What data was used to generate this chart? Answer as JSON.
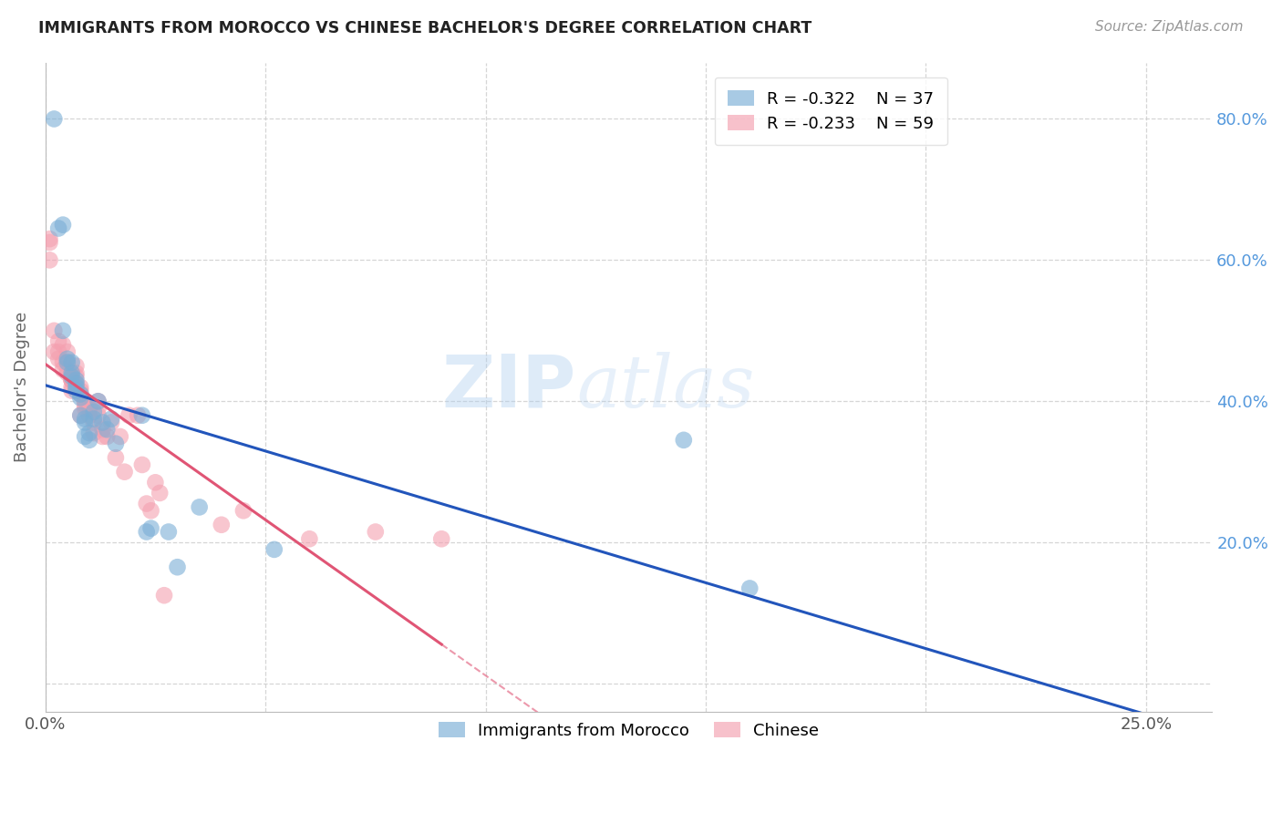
{
  "title": "IMMIGRANTS FROM MOROCCO VS CHINESE BACHELOR'S DEGREE CORRELATION CHART",
  "source": "Source: ZipAtlas.com",
  "ylabel": "Bachelor's Degree",
  "xlim": [
    0.0,
    0.265
  ],
  "ylim": [
    -0.04,
    0.88
  ],
  "legend_morocco_r": "R = -0.322",
  "legend_morocco_n": "N = 37",
  "legend_chinese_r": "R = -0.233",
  "legend_chinese_n": "N = 59",
  "color_morocco": "#7aaed6",
  "color_chinese": "#f4a0b0",
  "color_trendline_morocco": "#2255bb",
  "color_trendline_chinese": "#e05575",
  "watermark_zip": "ZIP",
  "watermark_atlas": "atlas",
  "morocco_x": [
    0.002,
    0.003,
    0.004,
    0.005,
    0.005,
    0.006,
    0.006,
    0.006,
    0.007,
    0.007,
    0.007,
    0.007,
    0.008,
    0.008,
    0.008,
    0.009,
    0.009,
    0.01,
    0.01,
    0.011,
    0.011,
    0.012,
    0.013,
    0.014,
    0.015,
    0.016,
    0.022,
    0.023,
    0.024,
    0.028,
    0.03,
    0.035,
    0.052,
    0.145,
    0.16,
    0.004,
    0.009
  ],
  "morocco_y": [
    0.8,
    0.645,
    0.5,
    0.46,
    0.455,
    0.455,
    0.44,
    0.435,
    0.43,
    0.425,
    0.42,
    0.415,
    0.41,
    0.405,
    0.38,
    0.375,
    0.37,
    0.355,
    0.345,
    0.385,
    0.375,
    0.4,
    0.37,
    0.36,
    0.375,
    0.34,
    0.38,
    0.215,
    0.22,
    0.215,
    0.165,
    0.25,
    0.19,
    0.345,
    0.135,
    0.65,
    0.35
  ],
  "chinese_x": [
    0.001,
    0.001,
    0.002,
    0.002,
    0.003,
    0.003,
    0.003,
    0.004,
    0.004,
    0.004,
    0.005,
    0.005,
    0.005,
    0.005,
    0.006,
    0.006,
    0.006,
    0.006,
    0.006,
    0.007,
    0.007,
    0.007,
    0.007,
    0.007,
    0.008,
    0.008,
    0.008,
    0.008,
    0.009,
    0.009,
    0.009,
    0.01,
    0.01,
    0.011,
    0.011,
    0.012,
    0.012,
    0.012,
    0.013,
    0.013,
    0.014,
    0.015,
    0.016,
    0.017,
    0.018,
    0.019,
    0.021,
    0.022,
    0.023,
    0.024,
    0.025,
    0.026,
    0.027,
    0.04,
    0.045,
    0.06,
    0.075,
    0.09,
    0.001
  ],
  "chinese_y": [
    0.63,
    0.6,
    0.5,
    0.47,
    0.485,
    0.47,
    0.46,
    0.48,
    0.455,
    0.445,
    0.47,
    0.455,
    0.445,
    0.44,
    0.43,
    0.43,
    0.43,
    0.42,
    0.415,
    0.45,
    0.44,
    0.435,
    0.425,
    0.42,
    0.42,
    0.415,
    0.41,
    0.38,
    0.4,
    0.395,
    0.39,
    0.39,
    0.38,
    0.37,
    0.355,
    0.4,
    0.39,
    0.38,
    0.36,
    0.35,
    0.35,
    0.37,
    0.32,
    0.35,
    0.3,
    0.38,
    0.38,
    0.31,
    0.255,
    0.245,
    0.285,
    0.27,
    0.125,
    0.225,
    0.245,
    0.205,
    0.215,
    0.205,
    0.625
  ],
  "x_tick_positions": [
    0.0,
    0.05,
    0.1,
    0.15,
    0.2,
    0.25
  ],
  "x_tick_labels": [
    "0.0%",
    "",
    "",
    "",
    "",
    "25.0%"
  ],
  "y_tick_positions": [
    0.0,
    0.2,
    0.4,
    0.6,
    0.8
  ],
  "y_tick_labels": [
    "",
    "20.0%",
    "40.0%",
    "60.0%",
    "80.0%"
  ]
}
